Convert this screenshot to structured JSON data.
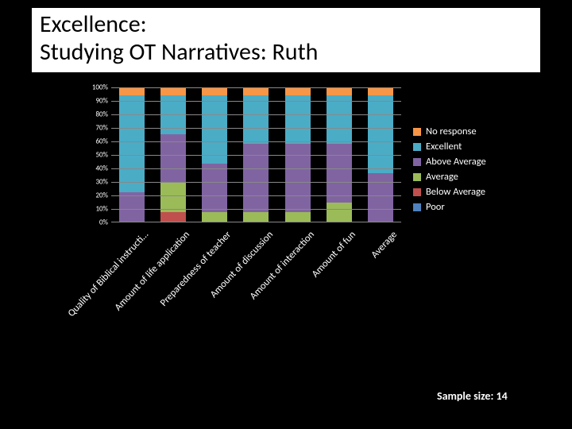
{
  "title": {
    "line1": "Excellence:",
    "line2": "Studying OT Narratives: Ruth",
    "fontsize": 30
  },
  "chart": {
    "type": "stacked-bar",
    "ylim": [
      0,
      100
    ],
    "ytick_step": 10,
    "yticks": [
      "0%",
      "10%",
      "20%",
      "30%",
      "40%",
      "50%",
      "60%",
      "70%",
      "80%",
      "90%",
      "100%"
    ],
    "grid_color": "#888888",
    "background_color": "#000000",
    "categories": [
      "Quality of Biblical instructi…",
      "Amount of life application",
      "Preparedness of teacher",
      "Amount of discussion",
      "Amount of interaction",
      "Amount of fun",
      "Average"
    ],
    "series_order": [
      "Poor",
      "Below Average",
      "Average",
      "Above Average",
      "Excellent",
      "No response"
    ],
    "series_colors": {
      "No response": "#f79646",
      "Excellent": "#4bacc6",
      "Above Average": "#8064a2",
      "Average": "#9bbb59",
      "Below Average": "#c0504d",
      "Poor": "#4f81bd"
    },
    "data": [
      {
        "Poor": 0,
        "Below Average": 0,
        "Average": 0,
        "Above Average": 22,
        "Excellent": 72,
        "No response": 6
      },
      {
        "Poor": 0,
        "Below Average": 7,
        "Average": 22,
        "Above Average": 36,
        "Excellent": 29,
        "No response": 6
      },
      {
        "Poor": 0,
        "Below Average": 0,
        "Average": 7,
        "Above Average": 36,
        "Excellent": 51,
        "No response": 6
      },
      {
        "Poor": 0,
        "Below Average": 0,
        "Average": 7,
        "Above Average": 51,
        "Excellent": 36,
        "No response": 6
      },
      {
        "Poor": 0,
        "Below Average": 0,
        "Average": 7,
        "Above Average": 51,
        "Excellent": 36,
        "No response": 6
      },
      {
        "Poor": 0,
        "Below Average": 0,
        "Average": 14,
        "Above Average": 44,
        "Excellent": 36,
        "No response": 6
      },
      {
        "Poor": 0,
        "Below Average": 0,
        "Average": 0,
        "Above Average": 36,
        "Excellent": 58,
        "No response": 6
      }
    ],
    "legend_order": [
      "No response",
      "Excellent",
      "Above Average",
      "Average",
      "Below Average",
      "Poor"
    ],
    "x_label_fontsize": 12.5,
    "y_label_fontsize": 9,
    "legend_fontsize": 12.5
  },
  "sample_size_label": "Sample size: 14"
}
